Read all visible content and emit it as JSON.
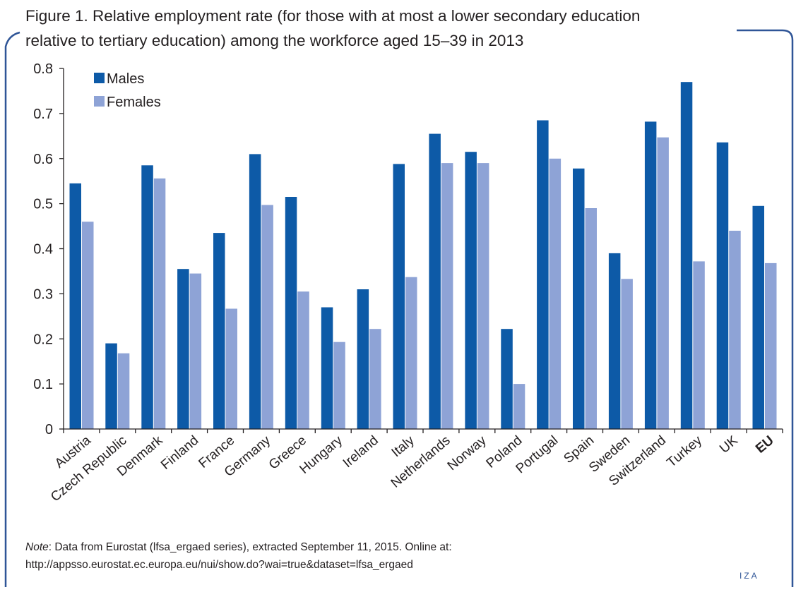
{
  "title_line_1": "Figure 1. Relative employment rate (for those with at most a lower secondary education",
  "title_line_2": "relative to tertiary education) among the workforce aged 15–39 in 2013",
  "note_label": "Note",
  "note_text_1": ": Data from Eurostat (lfsa_ergaed series), extracted September 11, 2015. Online at:",
  "note_text_2": "http://appsso.eurostat.ec.europa.eu/nui/show.do?wai=true&dataset=lfsa_ergaed",
  "logo": "IZA",
  "colors": {
    "males": "#0d5aa7",
    "females": "#8ea3d6",
    "frame": "#2f5597",
    "axis": "#231f20"
  },
  "chart_data": {
    "type": "bar",
    "title": "",
    "xlabel": "",
    "ylabel": "",
    "ylim": [
      0,
      0.8
    ],
    "yticks": [
      "0",
      "0.1",
      "0.2",
      "0.3",
      "0.4",
      "0.5",
      "0.6",
      "0.7",
      "0.8"
    ],
    "grid": false,
    "legend": "top-left",
    "categories": [
      "Austria",
      "Czech Republic",
      "Denmark",
      "Finland",
      "France",
      "Germany",
      "Greece",
      "Hungary",
      "Ireland",
      "Italy",
      "Netherlands",
      "Norway",
      "Poland",
      "Portugal",
      "Spain",
      "Sweden",
      "Switzerland",
      "Turkey",
      "UK",
      "EU"
    ],
    "bold_categories": [
      "EU"
    ],
    "series": [
      {
        "name": "Males",
        "values": [
          0.545,
          0.19,
          0.585,
          0.355,
          0.435,
          0.61,
          0.515,
          0.27,
          0.31,
          0.588,
          0.655,
          0.615,
          0.222,
          0.685,
          0.578,
          0.39,
          0.682,
          0.77,
          0.636,
          0.495
        ]
      },
      {
        "name": "Females",
        "values": [
          0.46,
          0.168,
          0.556,
          0.345,
          0.267,
          0.497,
          0.305,
          0.193,
          0.222,
          0.337,
          0.59,
          0.59,
          0.1,
          0.6,
          0.49,
          0.333,
          0.647,
          0.372,
          0.44,
          0.368
        ]
      }
    ]
  }
}
